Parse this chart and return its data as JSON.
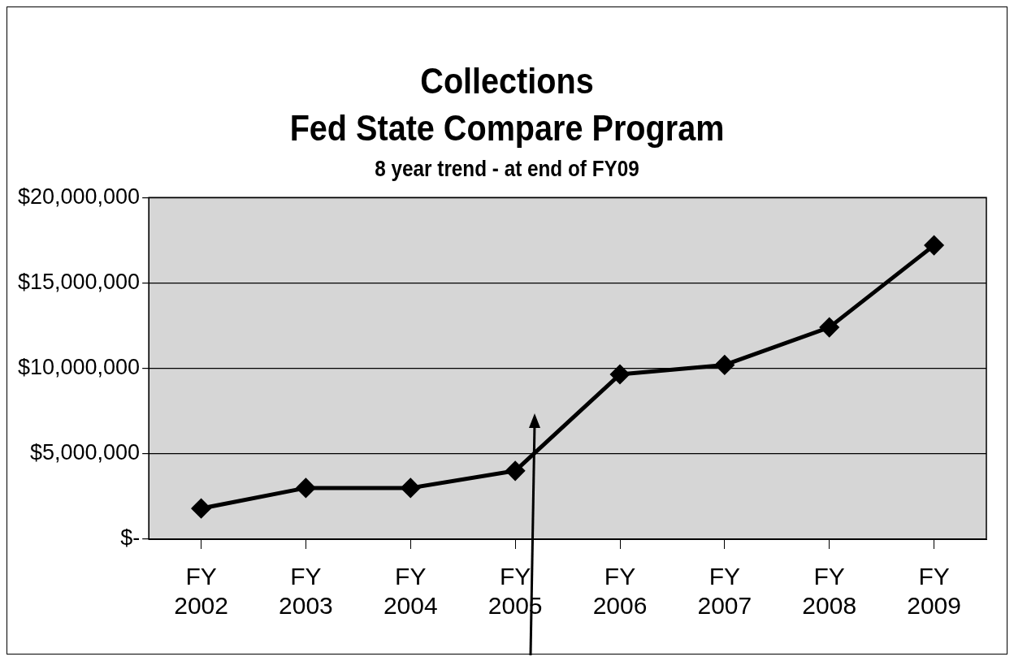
{
  "chart_data": {
    "type": "line",
    "title": "Collections\nFed State Compare Program",
    "subtitle": "8 year trend  - at end of FY09",
    "categories": [
      "FY 2002",
      "FY 2003",
      "FY 2004",
      "FY 2005",
      "FY 2006",
      "FY 2007",
      "FY 2008",
      "FY 2009"
    ],
    "series": [
      {
        "color": "#000000",
        "values": [
          1800000,
          3000000,
          3000000,
          4000000,
          9650000,
          10200000,
          12400000,
          17200000
        ]
      }
    ],
    "ylim": [
      0,
      20000000
    ],
    "yticks": [
      {
        "value": 0,
        "label": "$-"
      },
      {
        "value": 5000000,
        "label": "$5,000,000"
      },
      {
        "value": 10000000,
        "label": "$10,000,000"
      },
      {
        "value": 15000000,
        "label": "$15,000,000"
      },
      {
        "value": 20000000,
        "label": "$20,000,000"
      }
    ],
    "grid": "y",
    "marker": "diamond",
    "line_style": "solid",
    "legend": false
  }
}
